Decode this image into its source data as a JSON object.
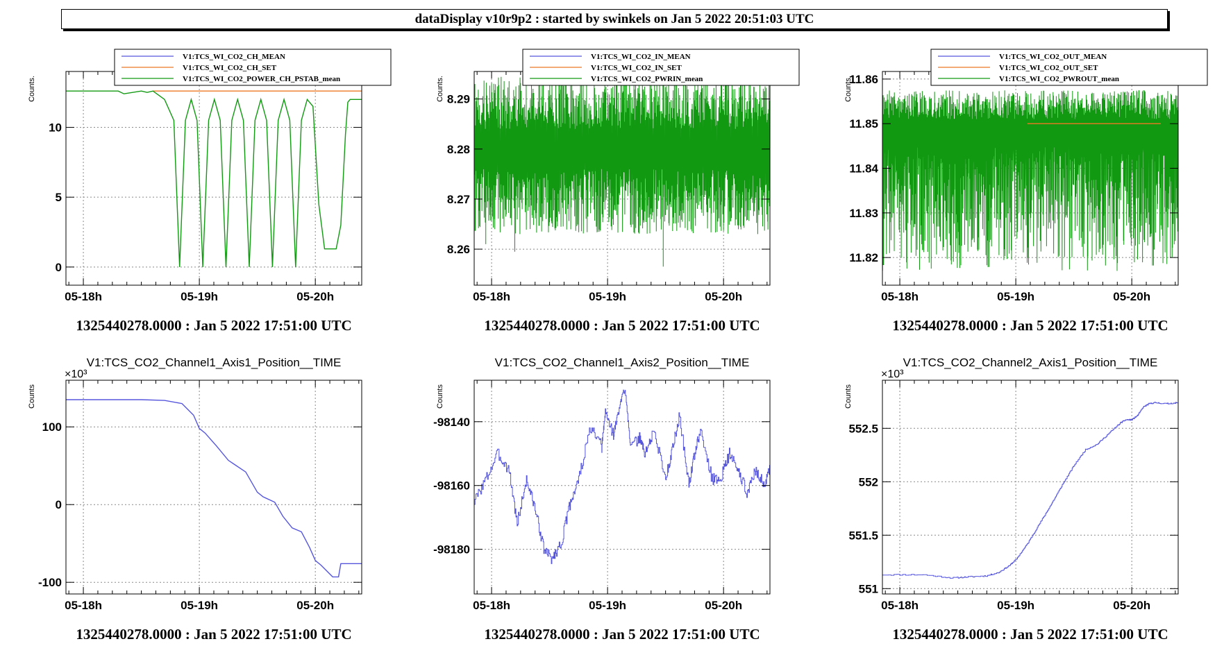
{
  "window": {
    "title": "dataDisplay v10r9p2 : started by swinkels on Jan  5 2022 20:51:03 UTC"
  },
  "colors": {
    "blue": "#5555dd",
    "orange": "#ee7722",
    "green": "#119911"
  },
  "chart_data": [
    {
      "type": "line",
      "title": "",
      "ylabel": "Counts.",
      "xlabel": "",
      "x_ticks": [
        "05-18h",
        "05-19h",
        "05-20h"
      ],
      "x_ticks_hours": [
        0,
        1,
        2
      ],
      "xlim_hours": [
        -0.15,
        2.4
      ],
      "ylim": [
        -1.3,
        14
      ],
      "y_ticks": [
        0,
        5,
        10
      ],
      "y_multiplier": "",
      "grid": true,
      "legend_position": "top-right",
      "legend": [
        "V1:TCS_WI_CO2_CH_MEAN",
        "V1:TCS_WI_CO2_CH_SET",
        "V1:TCS_WI_CO2_POWER_CH_PSTAB_mean"
      ],
      "series": [
        {
          "name": "V1:TCS_WI_CO2_CH_MEAN",
          "color": "blue",
          "x": [],
          "y": []
        },
        {
          "name": "V1:TCS_WI_CO2_CH_SET",
          "color": "orange",
          "x": [
            0.6,
            2.4
          ],
          "y": [
            12.6,
            12.6
          ]
        },
        {
          "name": "V1:TCS_WI_CO2_POWER_CH_PSTAB_mean",
          "color": "green",
          "x": [
            -0.15,
            0.3,
            0.35,
            0.5,
            0.55,
            0.6,
            0.65,
            0.7,
            0.78,
            0.83,
            0.88,
            0.93,
            0.98,
            1.03,
            1.08,
            1.13,
            1.18,
            1.23,
            1.28,
            1.33,
            1.38,
            1.43,
            1.48,
            1.53,
            1.58,
            1.63,
            1.68,
            1.73,
            1.78,
            1.83,
            1.88,
            1.93,
            1.98,
            2.03,
            2.08,
            2.13,
            2.18,
            2.22,
            2.26,
            2.28,
            2.3,
            2.4
          ],
          "y": [
            12.6,
            12.6,
            12.4,
            12.6,
            12.5,
            12.6,
            12.3,
            12.0,
            10.5,
            0.0,
            10.5,
            12.0,
            10.5,
            0.0,
            10.5,
            12.0,
            10.5,
            0.0,
            10.5,
            12.0,
            10.5,
            0.0,
            10.5,
            12.0,
            10.5,
            0.0,
            10.5,
            12.0,
            10.5,
            0.0,
            10.5,
            12.0,
            11.5,
            4.5,
            1.3,
            1.3,
            1.3,
            3.0,
            9.5,
            11.8,
            12.0,
            12.0
          ]
        }
      ],
      "timestamp": "1325440278.0000 : Jan  5 2022 17:51:00 UTC"
    },
    {
      "type": "line",
      "title": "",
      "ylabel": "Counts.",
      "xlabel": "",
      "x_ticks": [
        "05-18h",
        "05-19h",
        "05-20h"
      ],
      "x_ticks_hours": [
        0,
        1,
        2
      ],
      "xlim_hours": [
        -0.15,
        2.4
      ],
      "ylim": [
        8.2528,
        8.2955
      ],
      "y_ticks": [
        8.26,
        8.27,
        8.28,
        8.29
      ],
      "y_multiplier": "",
      "grid": true,
      "legend_position": "top-right",
      "legend": [
        "V1:TCS_WI_CO2_IN_MEAN",
        "V1:TCS_WI_CO2_IN_SET",
        "V1:TCS_WI_CO2_PWRIN_mean"
      ],
      "band_series": [
        {
          "name": "V1:TCS_WI_CO2_PWRIN_mean",
          "color": "green",
          "seed": 7,
          "count": 520,
          "center": 8.2795,
          "center_spread": 0.0035,
          "lo_min": 8.263,
          "lo_max": 8.276,
          "hi_min": 8.284,
          "hi_max": 8.2945,
          "spikes": [
            [
              0.2,
              8.2595
            ],
            [
              1.48,
              8.2565
            ],
            [
              2.38,
              8.2655
            ],
            [
              -0.05,
              8.261
            ]
          ]
        }
      ],
      "timestamp": "1325440278.0000 : Jan  5 2022 17:51:00 UTC"
    },
    {
      "type": "line",
      "title": "",
      "ylabel": "Counts.",
      "xlabel": "",
      "x_ticks": [
        "05-18h",
        "05-19h",
        "05-20h"
      ],
      "x_ticks_hours": [
        0,
        1,
        2
      ],
      "xlim_hours": [
        -0.15,
        2.4
      ],
      "ylim": [
        11.8138,
        11.8617
      ],
      "y_ticks": [
        11.82,
        11.83,
        11.84,
        11.85,
        11.86
      ],
      "y_multiplier": "",
      "grid": true,
      "legend_position": "top-right",
      "legend": [
        "V1:TCS_WI_CO2_OUT_MEAN",
        "V1:TCS_WI_CO2_OUT_SET",
        "V1:TCS_WI_CO2_PWROUT_mean"
      ],
      "series": [
        {
          "name": "V1:TCS_WI_CO2_OUT_SET",
          "color": "orange",
          "x": [
            1.1,
            2.25
          ],
          "y": [
            11.85,
            11.85
          ]
        }
      ],
      "band_series": [
        {
          "name": "V1:TCS_WI_CO2_PWROUT_mean",
          "color": "green",
          "seed": 19,
          "count": 560,
          "center": 11.845,
          "center_spread": 0.006,
          "lo_min": 11.817,
          "lo_max": 11.845,
          "hi_min": 11.851,
          "hi_max": 11.8575,
          "spikes": []
        }
      ],
      "timestamp": "1325440278.0000 : Jan  5 2022 17:51:00 UTC"
    },
    {
      "type": "line",
      "title": "V1:TCS_CO2_Channel1_Axis1_Position__TIME",
      "ylabel": "Counts",
      "xlabel": "",
      "x_ticks": [
        "05-18h",
        "05-19h",
        "05-20h"
      ],
      "x_ticks_hours": [
        0,
        1,
        2
      ],
      "xlim_hours": [
        -0.15,
        2.4
      ],
      "ylim": [
        -115,
        160
      ],
      "y_ticks": [
        -100,
        0,
        100
      ],
      "y_multiplier": "×10³",
      "grid": true,
      "series": [
        {
          "name": "",
          "color": "blue",
          "x": [
            -0.15,
            0.5,
            0.7,
            0.85,
            0.95,
            1.0,
            1.05,
            1.15,
            1.25,
            1.3,
            1.4,
            1.5,
            1.55,
            1.65,
            1.72,
            1.8,
            1.88,
            1.95,
            2.0,
            2.05,
            2.15,
            2.2,
            2.22,
            2.4
          ],
          "y": [
            135,
            135,
            134,
            130,
            115,
            98,
            92,
            75,
            57,
            52,
            42,
            16,
            10,
            3,
            -15,
            -30,
            -35,
            -55,
            -72,
            -78,
            -93,
            -93,
            -76,
            -76
          ]
        }
      ],
      "timestamp": "1325440278.0000 : Jan  5 2022 17:51:00 UTC"
    },
    {
      "type": "line",
      "title": "V1:TCS_CO2_Channel1_Axis2_Position__TIME",
      "ylabel": "Counts",
      "xlabel": "",
      "x_ticks": [
        "05-18h",
        "05-19h",
        "05-20h"
      ],
      "x_ticks_hours": [
        0,
        1,
        2
      ],
      "xlim_hours": [
        -0.15,
        2.4
      ],
      "ylim": [
        -98194,
        -98127
      ],
      "y_ticks": [
        -98180,
        -98160,
        -98140
      ],
      "y_multiplier": "",
      "grid": true,
      "series": [
        {
          "name": "",
          "color": "blue",
          "jitter": 1.8,
          "seed": 3,
          "x": [
            -0.15,
            -0.05,
            0.05,
            0.15,
            0.22,
            0.3,
            0.38,
            0.45,
            0.52,
            0.6,
            0.68,
            0.75,
            0.85,
            0.95,
            0.98,
            1.05,
            1.1,
            1.15,
            1.2,
            1.28,
            1.32,
            1.4,
            1.5,
            1.55,
            1.62,
            1.7,
            1.75,
            1.8,
            1.9,
            1.97,
            2.05,
            2.12,
            2.2,
            2.28,
            2.35,
            2.4
          ],
          "y": [
            -98165,
            -98158,
            -98150,
            -98155,
            -98172,
            -98158,
            -98168,
            -98180,
            -98183,
            -98178,
            -98165,
            -98158,
            -98142,
            -98148,
            -98137,
            -98144,
            -98136,
            -98129,
            -98148,
            -98145,
            -98150,
            -98143,
            -98158,
            -98150,
            -98138,
            -98160,
            -98150,
            -98143,
            -98158,
            -98158,
            -98150,
            -98155,
            -98162,
            -98155,
            -98160,
            -98155
          ]
        }
      ],
      "timestamp": "1325440278.0000 : Jan  5 2022 17:51:00 UTC"
    },
    {
      "type": "line",
      "title": "V1:TCS_CO2_Channel2_Axis1_Position__TIME",
      "ylabel": "Counts",
      "xlabel": "",
      "x_ticks": [
        "05-18h",
        "05-19h",
        "05-20h"
      ],
      "x_ticks_hours": [
        0,
        1,
        2
      ],
      "xlim_hours": [
        -0.15,
        2.4
      ],
      "ylim": [
        550.95,
        552.95
      ],
      "y_ticks": [
        551,
        551.5,
        552,
        552.5
      ],
      "y_multiplier": "×10³",
      "grid": true,
      "series": [
        {
          "name": "",
          "color": "blue",
          "jitter": 0.006,
          "seed": 11,
          "x": [
            -0.15,
            0.2,
            0.45,
            0.6,
            0.75,
            0.85,
            0.95,
            1.0,
            1.1,
            1.2,
            1.3,
            1.4,
            1.5,
            1.6,
            1.7,
            1.8,
            1.9,
            1.95,
            2.0,
            2.05,
            2.1,
            2.15,
            2.2,
            2.3,
            2.4
          ],
          "y": [
            551.13,
            551.13,
            551.1,
            551.11,
            551.12,
            551.15,
            551.22,
            551.27,
            551.42,
            551.6,
            551.78,
            551.97,
            552.15,
            552.3,
            552.35,
            552.45,
            552.55,
            552.58,
            552.58,
            552.62,
            552.7,
            552.73,
            552.74,
            552.73,
            552.74
          ]
        }
      ],
      "timestamp": "1325440278.0000 : Jan  5 2022 17:51:00 UTC"
    }
  ]
}
